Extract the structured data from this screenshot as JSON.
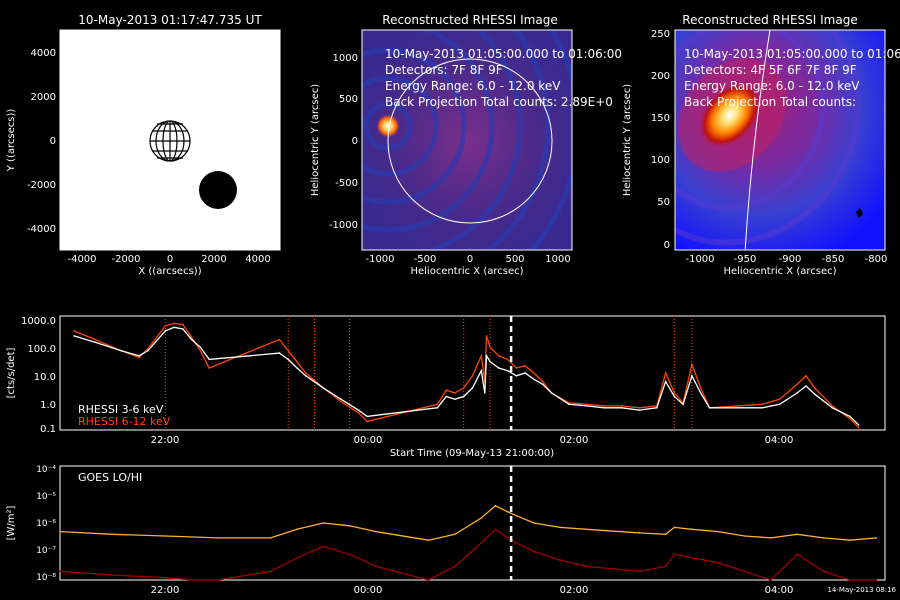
{
  "panels": {
    "sun_view": {
      "title": "10-May-2013 01:17:47.735 UT",
      "xlabel": "X ((arcsecs))",
      "ylabel": "Y ((arcsecs))",
      "xticks": [
        "-4000",
        "-2000",
        "0",
        "2000",
        "4000"
      ],
      "yticks": [
        "4000",
        "2000",
        "0",
        "-2000",
        "-4000"
      ]
    },
    "rhessi_a": {
      "title": "Reconstructed RHESSI Image",
      "line1": "10-May-2013 01:05:00.000 to 01:06:00",
      "line2": "Detectors: 7F 8F 9F",
      "line3": "Energy Range: 6.0 - 12.0 keV",
      "line4": "Back Projection     Total counts: 2.89E+0",
      "xlabel": "Heliocentric X (arcsec)",
      "ylabel": "Heliocentric Y (arcsec)",
      "xticks": [
        "-1000",
        "-500",
        "0",
        "500",
        "1000"
      ],
      "yticks": [
        "1000",
        "500",
        "0",
        "-500",
        "-1000"
      ]
    },
    "rhessi_b": {
      "title": "Reconstructed RHESSI Image",
      "line1": "10-May-2013 01:05:00.000 to 01:06:0",
      "line2": "Detectors: 4F 5F 6F 7F 8F 9F",
      "line3": "Energy Range: 6.0 - 12.0 keV",
      "line4": "Back Projection     Total counts:",
      "xlabel": "Heliocentric X (arcsec)",
      "ylabel": "Heliocentric Y (arcsec)",
      "xticks": [
        "-1000",
        "-950",
        "-900",
        "-850",
        "-800"
      ],
      "yticks": [
        "250",
        "200",
        "150",
        "100",
        "50",
        "0"
      ]
    },
    "rhessi_lc": {
      "ylabel": "[cts/s/det]",
      "yticks": [
        "1000.0",
        "100.0",
        "10.0",
        "1.0",
        "0.1"
      ],
      "xticks": [
        "22:00",
        "00:00",
        "02:00",
        "04:00"
      ],
      "xlabel": "Start Time (09-May-13 21:00:00)",
      "legend": [
        "RHESSI  3-6 keV",
        "RHESSI  6-12 keV"
      ]
    },
    "goes_lc": {
      "label": "GOES LO/HI",
      "ylabel": "[W/m²]",
      "yticks": [
        "10⁻⁴",
        "10⁻⁵",
        "10⁻⁶",
        "10⁻⁷",
        "10⁻⁸"
      ],
      "xticks": [
        "22:00",
        "00:00",
        "02:00",
        "04:00"
      ],
      "xlabel": "Start Time (09-May-13 21:00:00)",
      "stamp": "14-May-2013 08:16"
    }
  },
  "colors": {
    "rhessi_low": "#ffffff",
    "rhessi_high": "#ff4500",
    "goes_low": "#ffb030",
    "goes_high": "#a00000",
    "marker": "#ffffff",
    "flare_lines": "#ff4500"
  },
  "chart_data": [
    {
      "type": "line",
      "title": "",
      "xlabel": "Start Time (09-May-13 21:00:00)",
      "ylabel": "[cts/s/det]",
      "yscale": "log",
      "xlim": [
        "21:00",
        "04:50"
      ],
      "ylim": [
        0.1,
        1000
      ],
      "current_time_marker": "01:17",
      "flare_markers": [
        "22:00",
        "23:10",
        "23:25",
        "23:45",
        "00:50",
        "01:05",
        "02:50",
        "03:00"
      ],
      "series": [
        {
          "name": "RHESSI  3-6 keV",
          "x": [
            "21:08",
            "21:20",
            "21:35",
            "21:45",
            "21:50",
            "22:00",
            "22:05",
            "22:10",
            "22:15",
            "22:20",
            "22:25",
            "23:05",
            "23:10",
            "23:15",
            "23:20",
            "23:30",
            "23:40",
            "23:50",
            "23:55",
            "00:35",
            "00:40",
            "00:45",
            "00:50",
            "00:55",
            "01:00",
            "01:02",
            "01:03",
            "01:05",
            "01:10",
            "01:15",
            "01:20",
            "01:25",
            "01:30",
            "01:35",
            "01:40",
            "01:50",
            "02:00",
            "02:10",
            "02:20",
            "02:30",
            "02:40",
            "02:45",
            "02:50",
            "02:55",
            "03:00",
            "03:05",
            "03:10",
            "03:40",
            "03:50",
            "04:00",
            "04:05",
            "04:10",
            "04:20",
            "04:30",
            "04:35"
          ],
          "y": [
            200,
            120,
            60,
            40,
            60,
            300,
            400,
            350,
            150,
            80,
            30,
            50,
            30,
            15,
            8,
            3,
            1.2,
            0.5,
            0.3,
            0.6,
            1.5,
            1.2,
            1.5,
            3,
            12,
            2,
            40,
            25,
            15,
            12,
            8,
            10,
            6,
            4,
            2,
            0.8,
            0.7,
            0.6,
            0.6,
            0.5,
            0.6,
            5,
            1.5,
            0.8,
            8,
            2,
            0.6,
            0.6,
            0.8,
            2,
            3.5,
            1.8,
            0.6,
            0.3,
            0.15
          ]
        },
        {
          "name": "RHESSI  6-12 keV",
          "x": [
            "21:08",
            "21:20",
            "21:35",
            "21:45",
            "21:50",
            "22:00",
            "22:05",
            "22:10",
            "22:15",
            "22:20",
            "22:25",
            "23:05",
            "23:10",
            "23:15",
            "23:20",
            "23:30",
            "23:40",
            "23:50",
            "23:55",
            "00:35",
            "00:40",
            "00:45",
            "00:50",
            "00:55",
            "01:00",
            "01:02",
            "01:03",
            "01:05",
            "01:10",
            "01:15",
            "01:20",
            "01:25",
            "01:30",
            "01:35",
            "01:40",
            "01:50",
            "02:00",
            "02:10",
            "02:20",
            "02:30",
            "02:40",
            "02:45",
            "02:50",
            "02:55",
            "03:00",
            "03:05",
            "03:10",
            "03:40",
            "03:50",
            "04:00",
            "04:05",
            "04:10",
            "04:20",
            "04:30",
            "04:35"
          ],
          "y": [
            300,
            150,
            60,
            35,
            70,
            450,
            550,
            500,
            180,
            60,
            15,
            150,
            60,
            25,
            10,
            3,
            1,
            0.4,
            0.2,
            0.8,
            2.5,
            2,
            3,
            8,
            40,
            5,
            200,
            80,
            40,
            30,
            15,
            18,
            10,
            5,
            2,
            0.9,
            0.8,
            0.7,
            0.7,
            0.6,
            0.7,
            10,
            2,
            0.9,
            20,
            3,
            0.6,
            0.8,
            1.2,
            4,
            8,
            3,
            0.7,
            0.25,
            0.12
          ]
        }
      ]
    },
    {
      "type": "line",
      "title": "",
      "xlabel": "Start Time (09-May-13 21:00:00)",
      "ylabel": "[W/m²]",
      "yscale": "log",
      "xlim": [
        "21:00",
        "04:50"
      ],
      "ylim": [
        1e-08,
        0.0001
      ],
      "current_time_marker": "01:17",
      "series": [
        {
          "name": "GOES LO",
          "x": [
            "21:00",
            "21:30",
            "22:00",
            "22:30",
            "23:00",
            "23:15",
            "23:30",
            "23:45",
            "00:00",
            "00:30",
            "00:45",
            "01:00",
            "01:08",
            "01:15",
            "01:20",
            "01:30",
            "01:45",
            "02:00",
            "02:30",
            "02:45",
            "02:50",
            "03:00",
            "03:15",
            "03:30",
            "03:45",
            "04:00",
            "04:15",
            "04:30",
            "04:45"
          ],
          "y": [
            5e-07,
            4e-07,
            3.5e-07,
            3e-07,
            3e-07,
            6e-07,
            1e-06,
            8e-07,
            5e-07,
            2.5e-07,
            4e-07,
            1.5e-06,
            4e-06,
            2.5e-06,
            1.8e-06,
            1e-06,
            7e-07,
            6e-07,
            4.5e-07,
            4e-07,
            7e-07,
            6e-07,
            5e-07,
            3.5e-07,
            3e-07,
            4e-07,
            3e-07,
            2.5e-07,
            3e-07
          ]
        },
        {
          "name": "GOES HI",
          "x": [
            "21:00",
            "21:30",
            "22:00",
            "22:15",
            "22:30",
            "23:00",
            "23:15",
            "23:30",
            "23:45",
            "00:00",
            "00:30",
            "00:45",
            "01:00",
            "01:08",
            "01:15",
            "01:20",
            "01:30",
            "01:45",
            "02:00",
            "02:30",
            "02:45",
            "02:50",
            "03:00",
            "03:15",
            "03:30",
            "03:45",
            "04:00",
            "04:15",
            "04:30",
            "04:45"
          ],
          "y": [
            2e-08,
            1.5e-08,
            1.2e-08,
            1e-08,
            1e-08,
            2e-08,
            6e-08,
            1.5e-07,
            8e-08,
            3e-08,
            1e-08,
            3e-08,
            2e-07,
            6e-07,
            3e-07,
            2e-07,
            1e-07,
            5e-08,
            3e-08,
            2e-08,
            3e-08,
            8e-08,
            6e-08,
            4e-08,
            2e-08,
            1e-08,
            8e-08,
            2e-08,
            1e-08,
            1e-08
          ]
        }
      ]
    }
  ]
}
